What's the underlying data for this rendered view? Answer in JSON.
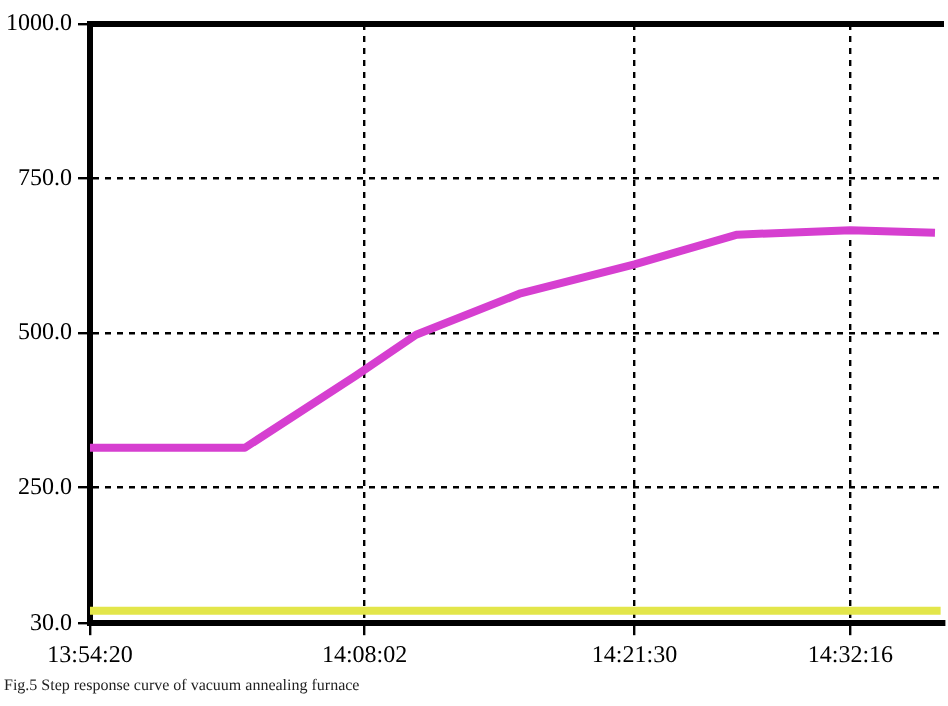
{
  "chart_data": {
    "type": "line",
    "x": [
      13.9056,
      14.0344,
      14.1261,
      14.1767,
      14.2636,
      14.3583,
      14.4436,
      14.5378,
      14.6081
    ],
    "series": [
      {
        "color": "#d63fd0",
        "values": [
          314,
          314,
          430,
          497,
          564,
          611,
          659,
          666,
          662
        ]
      },
      {
        "color": "#e3e64a",
        "x": [
          13.9056,
          14.6128
        ],
        "values": [
          50,
          50
        ]
      }
    ],
    "xlim": [
      13.9056,
      14.6156
    ],
    "xticks": [
      {
        "value": 13.9056,
        "label": "13:54:20"
      },
      {
        "value": 14.1339,
        "label": "14:08:02"
      },
      {
        "value": 14.3583,
        "label": "14:21:30"
      },
      {
        "value": 14.5378,
        "label": "14:32:16"
      }
    ],
    "ylim": [
      30,
      1000
    ],
    "yticks": [
      {
        "value": 30,
        "label": "30.0"
      },
      {
        "value": 250,
        "label": "250.0"
      },
      {
        "value": 500,
        "label": "500.0"
      },
      {
        "value": 750,
        "label": "750.0"
      },
      {
        "value": 1000,
        "label": "1000.0"
      }
    ],
    "grid": true,
    "line_style": "solid",
    "marker": "none",
    "legend": false,
    "annotations": [
      "Fig.5 Step response curve of vacuum annealing furnace"
    ]
  }
}
